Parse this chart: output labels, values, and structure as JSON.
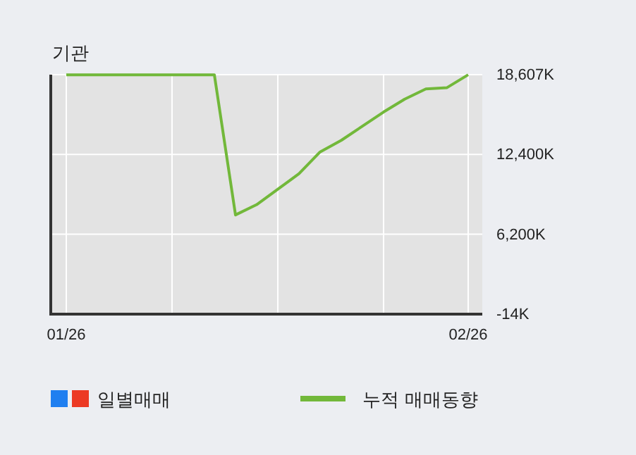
{
  "chart_data": {
    "type": "line",
    "title": "기관",
    "categories": [
      "01/26",
      null,
      null,
      null,
      null,
      null,
      null,
      null,
      null,
      null,
      null,
      null,
      null,
      null,
      null,
      null,
      null,
      null,
      null,
      "02/26"
    ],
    "series": [
      {
        "name": "일별매매",
        "type": "bar",
        "color": "#ec3a24",
        "values": [
          null,
          null,
          null,
          null,
          null,
          null,
          null,
          null,
          null,
          null,
          null,
          null,
          null,
          null,
          null,
          null,
          null,
          null,
          null,
          null
        ]
      },
      {
        "name": "누적 매매동향",
        "color": "#72b83a",
        "values": [
          18600,
          18600,
          18600,
          18600,
          18600,
          18600,
          18600,
          18600,
          7700,
          8500,
          9700,
          10900,
          12600,
          13500,
          14600,
          15700,
          16700,
          17500,
          17600,
          18600
        ]
      }
    ],
    "ylim": [
      -14,
      18607
    ],
    "yticks": [
      {
        "value": -14,
        "label": "-14K"
      },
      {
        "value": 6200,
        "label": "6,200K"
      },
      {
        "value": 12400,
        "label": "12,400K"
      },
      {
        "value": 18607,
        "label": "18,607K"
      }
    ],
    "grid": true,
    "legend": "bottom"
  }
}
